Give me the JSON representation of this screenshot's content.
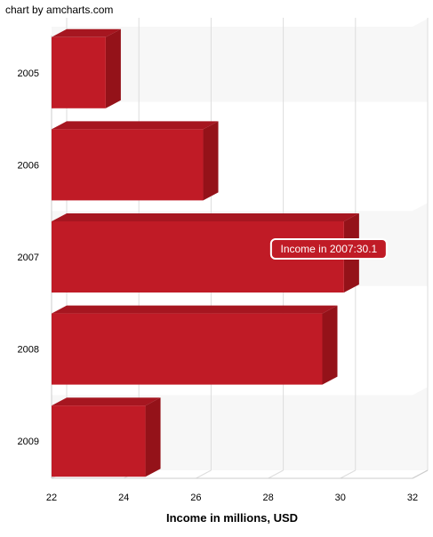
{
  "credit": "chart by amcharts.com",
  "colors": {
    "bar_front": "#c01b26",
    "bar_top": "#a61620",
    "bar_side": "#941219",
    "grid": "#dddddd",
    "band": "#f7f7f7",
    "tooltip_bg": "#c01b26",
    "tooltip_border": "#ffffff"
  },
  "tooltip": {
    "category": "2007",
    "text": "Income in 2007:30.1"
  },
  "chart_data": {
    "type": "bar",
    "orientation": "horizontal",
    "categories": [
      "2005",
      "2006",
      "2007",
      "2008",
      "2009"
    ],
    "series": [
      {
        "name": "Income",
        "values": [
          23.5,
          26.2,
          30.1,
          29.5,
          24.6
        ]
      }
    ],
    "xlabel": "Income in millions, USD",
    "ylabel": "",
    "xlim": [
      22,
      32
    ],
    "xticks": [
      22,
      24,
      26,
      28,
      30,
      32
    ],
    "grid": true,
    "alternating_bands": true,
    "depth_3d": true
  }
}
